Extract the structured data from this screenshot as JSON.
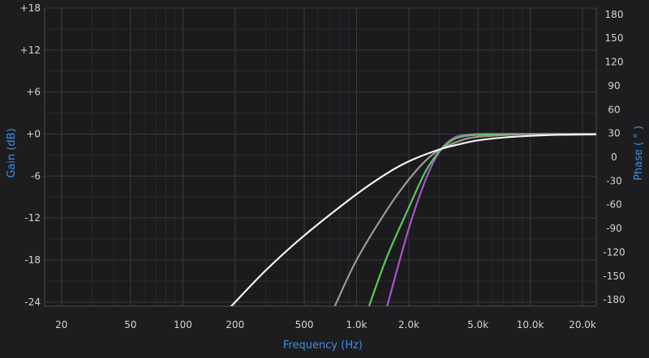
{
  "chart_data": {
    "type": "line",
    "xlabel": "Frequency (Hz)",
    "ylabel": "Gain (dB)",
    "y2label": "Phase ( ° )",
    "x_scale": "log",
    "xlim": [
      16,
      24000
    ],
    "ylim": [
      -24.6,
      18
    ],
    "y2lim": [
      -188,
      188
    ],
    "grid": true,
    "x_ticks": [
      {
        "value": 20,
        "label": "20"
      },
      {
        "value": 50,
        "label": "50"
      },
      {
        "value": 100,
        "label": "100"
      },
      {
        "value": 200,
        "label": "200"
      },
      {
        "value": 500,
        "label": "500"
      },
      {
        "value": 1000,
        "label": "1.0k"
      },
      {
        "value": 2000,
        "label": "2.0k"
      },
      {
        "value": 5000,
        "label": "5.0k"
      },
      {
        "value": 10000,
        "label": "10.0k"
      },
      {
        "value": 20000,
        "label": "20.0k"
      }
    ],
    "y_ticks": [
      {
        "value": 18,
        "label": "+18"
      },
      {
        "value": 12,
        "label": "+12"
      },
      {
        "value": 6,
        "label": "+6"
      },
      {
        "value": 0,
        "label": "+0"
      },
      {
        "value": -6,
        "label": "-6"
      },
      {
        "value": -12,
        "label": "-12"
      },
      {
        "value": -18,
        "label": "-18"
      },
      {
        "value": -24,
        "label": "-24"
      }
    ],
    "y2_ticks": [
      {
        "value": 180,
        "label": "180"
      },
      {
        "value": 150,
        "label": "150"
      },
      {
        "value": 120,
        "label": "120"
      },
      {
        "value": 90,
        "label": "90"
      },
      {
        "value": 60,
        "label": "60"
      },
      {
        "value": 30,
        "label": "30"
      },
      {
        "value": 0,
        "label": "0"
      },
      {
        "value": -30,
        "label": "-30"
      },
      {
        "value": -60,
        "label": "-60"
      },
      {
        "value": -90,
        "label": "-90"
      },
      {
        "value": -120,
        "label": "-120"
      },
      {
        "value": -150,
        "label": "-150"
      },
      {
        "value": -180,
        "label": "-180"
      }
    ],
    "series": [
      {
        "color": "#a855c7",
        "x": [
          1500,
          2000,
          2500,
          3000,
          3500,
          4000,
          5000,
          7000,
          24000
        ],
        "values": [
          -24.6,
          -13.5,
          -6.5,
          -2.5,
          -0.8,
          -0.2,
          0,
          0,
          0
        ]
      },
      {
        "color": "#5bc85b",
        "x": [
          1180,
          1500,
          2000,
          2500,
          3000,
          3500,
          4000,
          5000,
          7000,
          24000
        ],
        "values": [
          -24.6,
          -17.5,
          -10.5,
          -5.3,
          -2.5,
          -1.0,
          -0.4,
          -0.1,
          0,
          0
        ]
      },
      {
        "color": "#9a9a9a",
        "x": [
          750,
          1000,
          1500,
          2000,
          2500,
          3000,
          4000,
          5000,
          7000,
          10000,
          24000
        ],
        "values": [
          -24.6,
          -18,
          -10.8,
          -6.5,
          -3.8,
          -2.3,
          -0.9,
          -0.4,
          -0.15,
          0,
          0
        ]
      },
      {
        "color": "#f2f2f2",
        "x": [
          190,
          300,
          500,
          1000,
          1500,
          2000,
          3000,
          4000,
          5000,
          7000,
          10000,
          15000,
          24000
        ],
        "values": [
          -24.6,
          -19.5,
          -14.5,
          -8.6,
          -5.6,
          -3.9,
          -2.2,
          -1.4,
          -0.9,
          -0.5,
          -0.25,
          -0.1,
          -0.05
        ]
      }
    ]
  }
}
